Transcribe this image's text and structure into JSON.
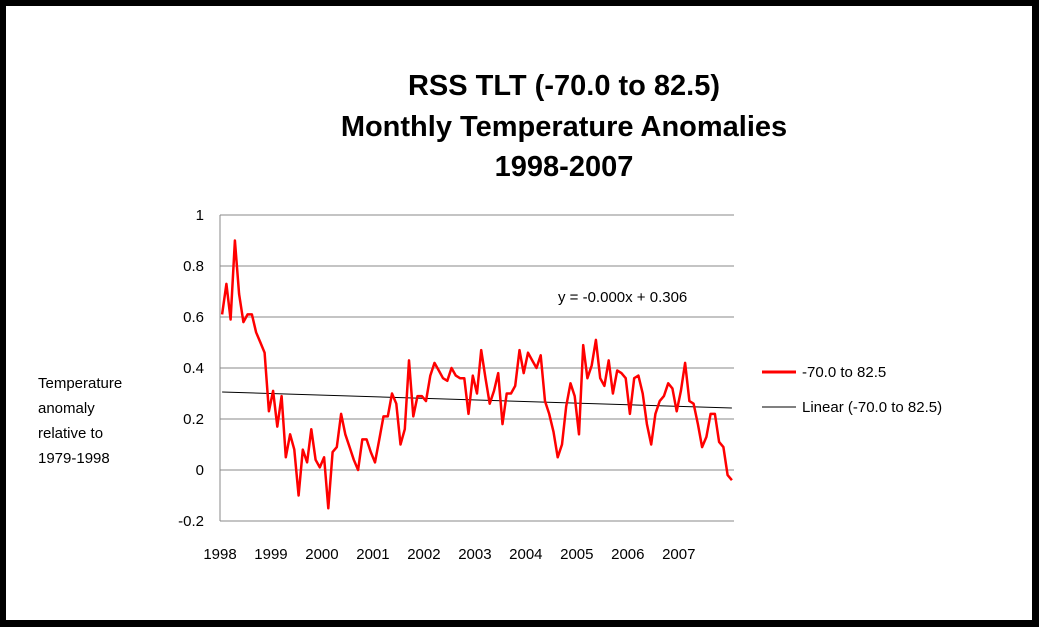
{
  "chart_data": {
    "type": "line",
    "title": [
      "RSS TLT (-70.0 to 82.5)",
      "Monthly Temperature Anomalies",
      "1998-2007"
    ],
    "ylabel": [
      "Temperature",
      "anomaly",
      "relative to",
      "1979-1998"
    ],
    "xlabel": "",
    "ylim": [
      -0.2,
      1
    ],
    "yticks": [
      "1",
      "0.8",
      "0.6",
      "0.4",
      "0.2",
      "0",
      "-0.2"
    ],
    "ytick_values": [
      1,
      0.8,
      0.6,
      0.4,
      0.2,
      0,
      -0.2
    ],
    "xticks": [
      "1998",
      "1999",
      "2000",
      "2001",
      "2002",
      "2003",
      "2004",
      "2005",
      "2006",
      "2007"
    ],
    "grid": true,
    "legend_position": "right",
    "trendline_equation": "y = -0.000x + 0.306",
    "series": [
      {
        "name": "-70.0 to 82.5",
        "color": "#ff0000",
        "values": [
          0.61,
          0.73,
          0.59,
          0.9,
          0.69,
          0.58,
          0.61,
          0.61,
          0.54,
          0.5,
          0.46,
          0.23,
          0.31,
          0.17,
          0.29,
          0.05,
          0.14,
          0.08,
          -0.1,
          0.08,
          0.03,
          0.16,
          0.04,
          0.01,
          0.05,
          -0.15,
          0.07,
          0.09,
          0.22,
          0.14,
          0.09,
          0.04,
          0.0,
          0.12,
          0.12,
          0.07,
          0.03,
          0.12,
          0.21,
          0.21,
          0.3,
          0.26,
          0.1,
          0.16,
          0.43,
          0.21,
          0.29,
          0.29,
          0.27,
          0.37,
          0.42,
          0.39,
          0.36,
          0.35,
          0.4,
          0.37,
          0.36,
          0.36,
          0.22,
          0.37,
          0.3,
          0.47,
          0.36,
          0.26,
          0.31,
          0.38,
          0.18,
          0.3,
          0.3,
          0.33,
          0.47,
          0.38,
          0.46,
          0.43,
          0.4,
          0.45,
          0.27,
          0.22,
          0.15,
          0.05,
          0.1,
          0.25,
          0.34,
          0.29,
          0.14,
          0.49,
          0.36,
          0.41,
          0.51,
          0.36,
          0.33,
          0.43,
          0.3,
          0.39,
          0.38,
          0.36,
          0.22,
          0.36,
          0.37,
          0.3,
          0.18,
          0.1,
          0.22,
          0.27,
          0.29,
          0.34,
          0.32,
          0.23,
          0.31,
          0.42,
          0.27,
          0.26,
          0.18,
          0.09,
          0.13,
          0.22,
          0.22,
          0.11,
          0.09,
          -0.02,
          -0.04
        ]
      },
      {
        "name": "Linear (-70.0 to 82.5)",
        "color": "#000000",
        "values": [
          0.306,
          0.243
        ]
      }
    ]
  }
}
